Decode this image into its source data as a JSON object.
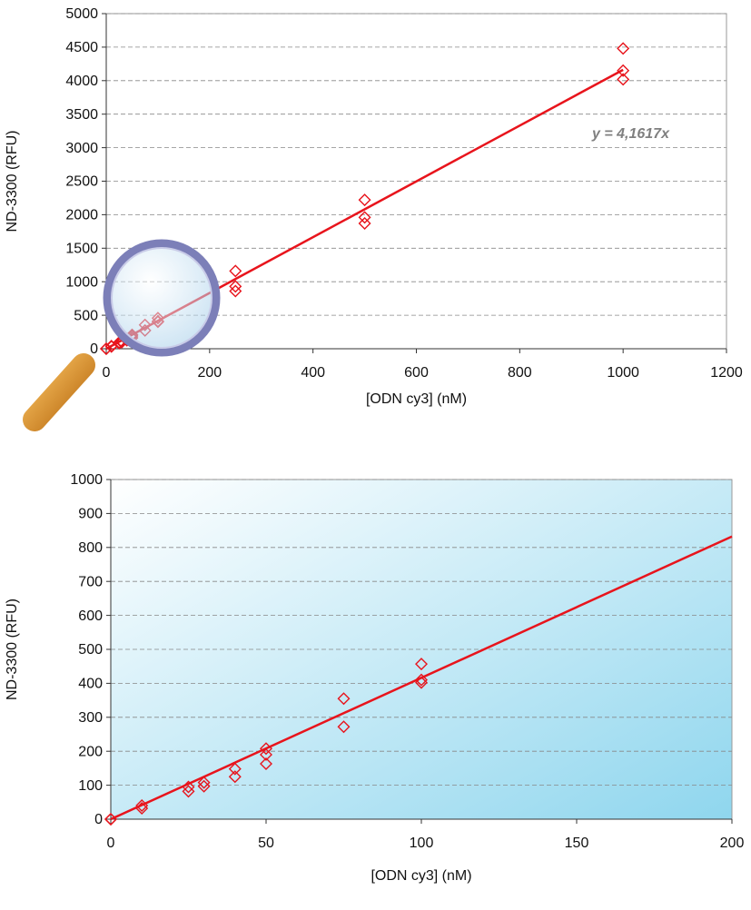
{
  "chart_data": [
    {
      "type": "scatter",
      "x_label": "[ODN cy3] (nM)",
      "y_label": "ND-3300 (RFU)",
      "annotation": "y = 4,1617x",
      "x": [
        0,
        0,
        10,
        10,
        25,
        25,
        30,
        30,
        40,
        40,
        50,
        50,
        50,
        75,
        75,
        100,
        100,
        100,
        250,
        250,
        250,
        500,
        500,
        500,
        1000,
        1000,
        1000
      ],
      "values": [
        0,
        0,
        40,
        32,
        95,
        82,
        108,
        97,
        148,
        125,
        208,
        190,
        163,
        355,
        272,
        457,
        410,
        402,
        1160,
        930,
        860,
        2220,
        1960,
        1870,
        4480,
        4150,
        4020
      ],
      "color": "#e8141c",
      "trendline": {
        "x": [
          0,
          1000
        ],
        "values": [
          0,
          4161.7
        ]
      },
      "xlim": [
        0,
        1200
      ],
      "xticks": [
        0,
        200,
        400,
        600,
        800,
        1000,
        1200
      ],
      "ylim": [
        0,
        5000
      ],
      "yticks": [
        0,
        500,
        1000,
        1500,
        2000,
        2500,
        3000,
        3500,
        4000,
        4500,
        5000
      ],
      "grid": true
    },
    {
      "type": "scatter",
      "x_label": "[ODN cy3] (nM)",
      "y_label": "ND-3300 (RFU)",
      "x": [
        0,
        0,
        10,
        10,
        25,
        25,
        30,
        30,
        40,
        40,
        50,
        50,
        50,
        75,
        75,
        100,
        100,
        100
      ],
      "values": [
        0,
        0,
        40,
        32,
        95,
        82,
        108,
        97,
        148,
        125,
        208,
        190,
        163,
        355,
        272,
        457,
        410,
        402
      ],
      "color": "#e8141c",
      "trendline": {
        "x": [
          0,
          200
        ],
        "values": [
          0,
          832.34
        ]
      },
      "xlim": [
        0,
        200
      ],
      "xticks": [
        0,
        50,
        100,
        150,
        200
      ],
      "ylim": [
        0,
        1000
      ],
      "yticks": [
        0,
        100,
        200,
        300,
        400,
        500,
        600,
        700,
        800,
        900,
        1000
      ],
      "grid": true
    }
  ]
}
